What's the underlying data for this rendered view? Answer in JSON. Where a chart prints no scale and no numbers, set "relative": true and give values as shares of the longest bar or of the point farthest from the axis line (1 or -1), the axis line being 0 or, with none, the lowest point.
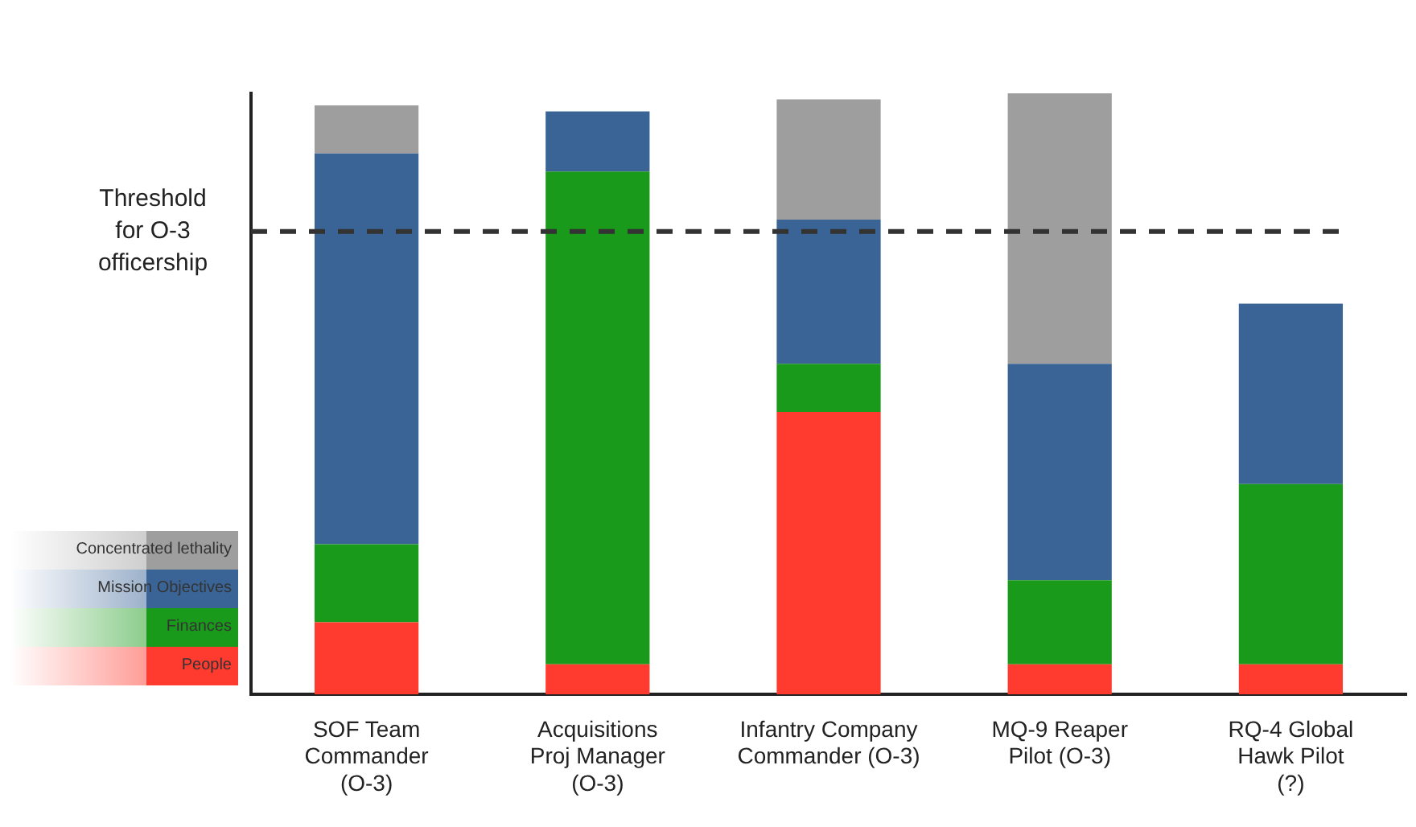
{
  "chart_data": {
    "type": "bar",
    "stacked": true,
    "relative": true,
    "categories": [
      "SOF Team\nCommander\n(O-3)",
      "Acquisitions\nProj Manager\n(O-3)",
      "Infantry Company\nCommander (O-3)",
      "MQ-9 Reaper\nPilot (O-3)",
      "RQ-4 Global\nHawk Pilot\n(?)"
    ],
    "series": [
      {
        "name": "People",
        "color": "#ff3b30",
        "values": [
          0.12,
          0.05,
          0.47,
          0.05,
          0.05
        ]
      },
      {
        "name": "Finances",
        "color": "#1a9a1a",
        "values": [
          0.13,
          0.82,
          0.08,
          0.14,
          0.3
        ]
      },
      {
        "name": "Mission Objectives",
        "color": "#3a6496",
        "values": [
          0.65,
          0.1,
          0.24,
          0.36,
          0.3
        ]
      },
      {
        "name": "Concentrated lethality",
        "color": "#9e9e9e",
        "values": [
          0.08,
          null,
          0.2,
          0.45,
          null
        ]
      }
    ],
    "ref_lines": [
      {
        "axis": "y",
        "value": 0.77,
        "label": "Threshold\nfor O-3\nofficership",
        "line_style": "dashed",
        "color": "#333333"
      }
    ],
    "legend": "bottom left",
    "grid": false
  }
}
